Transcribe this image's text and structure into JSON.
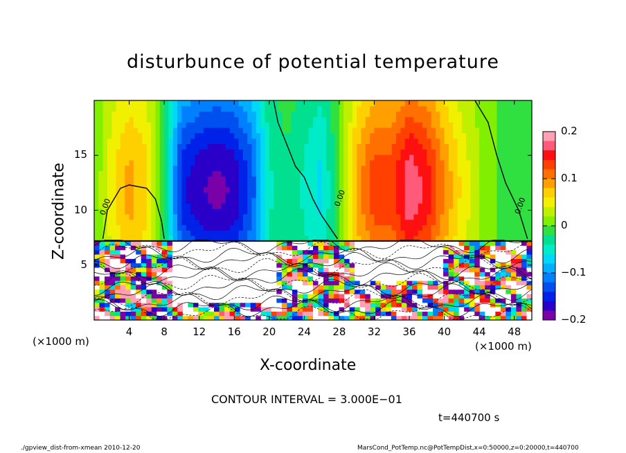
{
  "chart_data": {
    "type": "heatmap",
    "title": "disturbunce of potential temperature",
    "xlabel": "X-coordinate",
    "ylabel": "Z-coordinate",
    "x_unit_left": "(×1000 m)",
    "x_unit_right": "(×1000 m)",
    "xlim": [
      0,
      50
    ],
    "ylim": [
      0,
      20
    ],
    "x_ticks": [
      "4",
      "8",
      "12",
      "16",
      "20",
      "24",
      "28",
      "32",
      "36",
      "40",
      "44",
      "48"
    ],
    "x_tick_values": [
      4,
      8,
      12,
      16,
      20,
      24,
      28,
      32,
      36,
      40,
      44,
      48
    ],
    "y_ticks": [
      "5",
      "10",
      "15"
    ],
    "y_tick_values": [
      5,
      10,
      15
    ],
    "colorbar": {
      "range": [
        -0.2,
        0.2
      ],
      "ticks": [
        "0.2",
        "0.1",
        "0",
        "−0.1",
        "−0.2"
      ],
      "tick_values": [
        0.2,
        0.1,
        0,
        -0.1,
        -0.2
      ],
      "colors": [
        "#7a00a8",
        "#2a00c8",
        "#0022e8",
        "#0050f0",
        "#0080ff",
        "#00b0ff",
        "#00d8f8",
        "#00ecc8",
        "#00e090",
        "#30e040",
        "#80f000",
        "#c0f000",
        "#f0f000",
        "#ffd000",
        "#ffa000",
        "#ff7000",
        "#ff4000",
        "#ff1010",
        "#ff5a7a",
        "#ffa0b4"
      ]
    },
    "contour_interval": "CONTOUR INTERVAL = 3.000E−01",
    "contour_labels": [
      "0.00",
      "0.00",
      "0.00"
    ],
    "time": "t=440700 s",
    "grid": false,
    "upper_layer_profile": {
      "note_values_are_disturbance_by_x_km": true,
      "x": [
        0,
        2,
        4,
        6,
        8,
        10,
        12,
        14,
        16,
        18,
        20,
        22,
        24,
        26,
        28,
        30,
        32,
        34,
        36,
        38,
        40,
        42,
        44,
        46,
        48,
        50
      ],
      "value": [
        0.0,
        0.05,
        0.08,
        0.06,
        -0.02,
        -0.14,
        -0.16,
        -0.17,
        -0.16,
        -0.12,
        -0.04,
        -0.02,
        -0.04,
        -0.06,
        0.0,
        0.08,
        0.12,
        0.12,
        0.16,
        0.14,
        0.09,
        0.05,
        0.02,
        0.0,
        -0.01,
        0.0
      ]
    }
  },
  "footer": {
    "left": "./gpview_dist-from-xmean  2010-12-20",
    "right": "MarsCond_PotTemp.nc@PotTempDist,x=0:50000,z=0:20000,t=440700"
  }
}
